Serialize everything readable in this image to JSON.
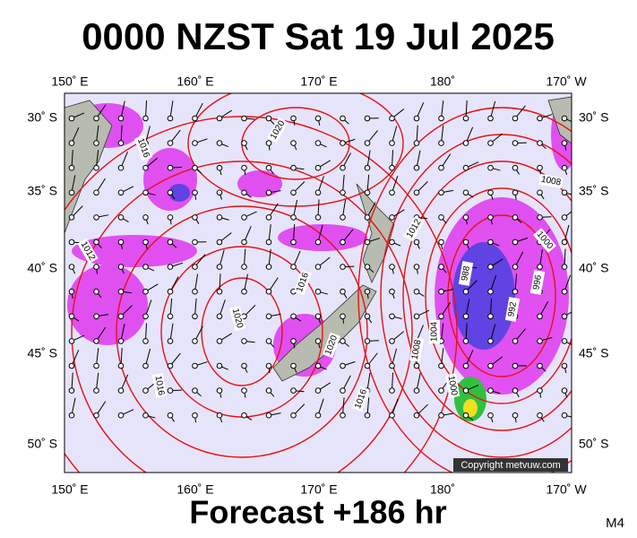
{
  "header": {
    "title": "0000 NZST Sat 19 Jul 2025"
  },
  "map": {
    "longitude_labels": [
      "150˚ E",
      "160˚ E",
      "170˚ E",
      "180˚",
      "170˚ W"
    ],
    "latitude_labels": [
      "30˚ S",
      "35˚ S",
      "40˚ S",
      "45˚ S",
      "50˚ S"
    ],
    "contour_labels": [
      "1020",
      "1016",
      "1012",
      "1016",
      "1020",
      "1016",
      "1020",
      "1016",
      "1012",
      "1008",
      "1000",
      "996",
      "992",
      "988",
      "1004",
      "1008",
      "1000"
    ],
    "copyright": "Copyright metvuw.com"
  },
  "footer": {
    "forecast": "Forecast +186 hr",
    "model": "M4"
  }
}
